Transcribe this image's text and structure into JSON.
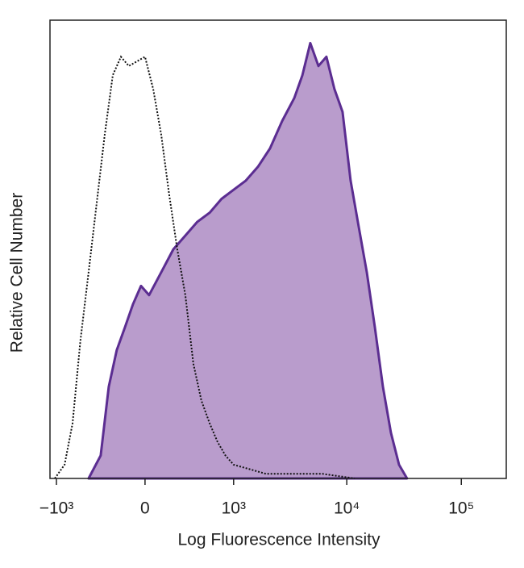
{
  "chart_data": {
    "type": "histogram-overlay",
    "x_label": "Log Fluorescence Intensity",
    "y_label": "Relative Cell Number",
    "xscale": "biexponential",
    "xlim": [
      -1146,
      246700
    ],
    "ylim": [
      0,
      100
    ],
    "xticks": [
      {
        "value": -1000,
        "label": "−10³"
      },
      0,
      {
        "value": 1000,
        "label": "10³"
      },
      {
        "value": 10000,
        "label": "10⁴"
      },
      {
        "value": 100000,
        "label": "10⁵"
      }
    ],
    "series": [
      {
        "style": "filled",
        "color": "#5b2d91",
        "fill": "#b99ccc",
        "x": [
          -483,
          -352,
          -276,
          -208,
          -144,
          -85,
          -28,
          28,
          115,
          208,
          313,
          436,
          589,
          770,
          1000,
          1293,
          1658,
          2125,
          2717,
          3470,
          4090,
          4800,
          5650,
          6640,
          7800,
          9190,
          10800,
          12700,
          14960,
          17600,
          20700,
          24300,
          28600,
          33600
        ],
        "values": [
          0,
          5,
          20,
          28,
          33,
          38,
          42,
          40,
          45,
          50,
          53,
          56,
          58,
          61,
          63,
          65,
          68,
          72,
          78,
          83,
          88,
          95,
          90,
          92,
          85,
          80,
          65,
          55,
          45,
          33,
          20,
          10,
          3,
          0
        ]
      },
      {
        "style": "dotted",
        "color": "#111111",
        "x": [
          -1034,
          -840,
          -704,
          -589,
          -483,
          -393,
          -313,
          -241,
          -175,
          -115,
          -57,
          0,
          57,
          115,
          175,
          241,
          313,
          393,
          483,
          589,
          704,
          840,
          1000,
          1406,
          1957,
          6140,
          11730
        ],
        "values": [
          0,
          3,
          12,
          30,
          45,
          60,
          75,
          88,
          92,
          90,
          91,
          92,
          85,
          75,
          62,
          50,
          40,
          25,
          17,
          12,
          8,
          5,
          3,
          2,
          1,
          1,
          0
        ]
      }
    ]
  }
}
